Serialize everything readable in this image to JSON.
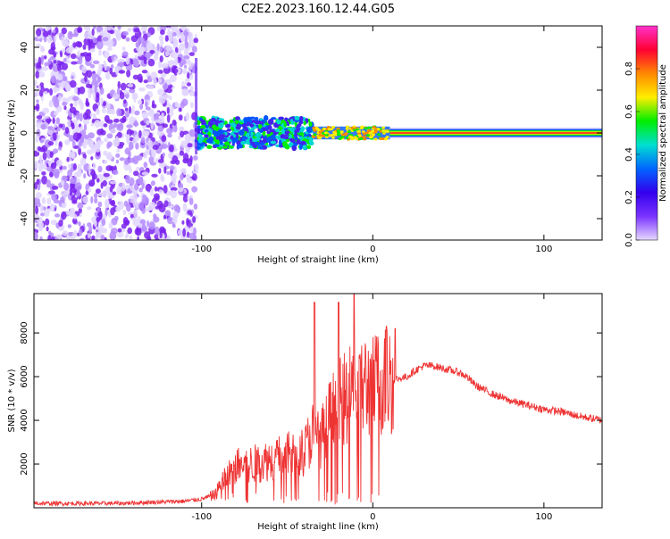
{
  "figure": {
    "title": "C2E2.2023.160.12.44.G05"
  },
  "chart_data": [
    {
      "type": "heatmap",
      "xlabel": "Height of straight line (km)",
      "ylabel": "Frequency (Hz)",
      "xlim": [
        -198,
        134
      ],
      "ylim": [
        -50,
        50
      ],
      "x_ticks": [
        "-100",
        "0",
        "100"
      ],
      "y_ticks": [
        "-40",
        "-20",
        "0",
        "20",
        "40"
      ],
      "colorbar": {
        "label": "Normalized spectral amplitude",
        "range": [
          0,
          1
        ],
        "ticks": [
          "0.0",
          "0.2",
          "0.4",
          "0.6",
          "0.8"
        ],
        "colors": [
          "#ff33cc",
          "#ff0033",
          "#ff8800",
          "#ffee00",
          "#00ee00",
          "#00e0d0",
          "#0066ff",
          "#3300ee",
          "#7a33ff",
          "#e6d9ff"
        ]
      },
      "regions": [
        {
          "x_range": [
            -198,
            -103
          ],
          "frequency_range": [
            -50,
            50
          ],
          "level": 0.12
        },
        {
          "x_range": [
            -103,
            -35
          ],
          "frequency_center": 0,
          "half_width": 7,
          "level": 0.45
        },
        {
          "x_range": [
            -35,
            10
          ],
          "frequency_center": 0,
          "half_width": 3,
          "level": 0.6
        },
        {
          "x_range": [
            10,
            134
          ],
          "frequency_center": 0,
          "half_width": 1,
          "level": 0.9
        }
      ],
      "grid": false
    },
    {
      "type": "line",
      "xlabel": "Height of straight line (km)",
      "ylabel": "SNR (10 * v/v)",
      "xlim": [
        -198,
        134
      ],
      "ylim": [
        0,
        9800
      ],
      "x_ticks": [
        "-100",
        "0",
        "100"
      ],
      "y_ticks": [
        "2000",
        "4000",
        "6000",
        "8000"
      ],
      "color": "#ee3333",
      "envelope": {
        "x": [
          -198,
          -150,
          -110,
          -100,
          -92,
          -88,
          -80,
          -70,
          -60,
          -50,
          -40,
          -35,
          -30,
          -25,
          -20,
          -15,
          -10,
          -5,
          0,
          5,
          10,
          15,
          20,
          25,
          30,
          35,
          40,
          45,
          50,
          55,
          60,
          70,
          80,
          90,
          100,
          110,
          120,
          134
        ],
        "y": [
          200,
          200,
          300,
          400,
          600,
          1200,
          1900,
          2000,
          2200,
          2400,
          2600,
          3500,
          3200,
          4200,
          4700,
          5000,
          5300,
          5600,
          5500,
          5800,
          5900,
          5900,
          6000,
          6300,
          6500,
          6500,
          6400,
          6300,
          6200,
          6000,
          5600,
          5200,
          4900,
          4700,
          4500,
          4400,
          4200,
          4000
        ]
      },
      "notable_peaks": [
        {
          "x": -34,
          "y": 9400
        },
        {
          "x": -20,
          "y": 9400
        },
        {
          "x": -11,
          "y": 9800
        },
        {
          "x": 8,
          "y": 8300
        },
        {
          "x": 13,
          "y": 8200
        }
      ],
      "grid": false
    }
  ]
}
